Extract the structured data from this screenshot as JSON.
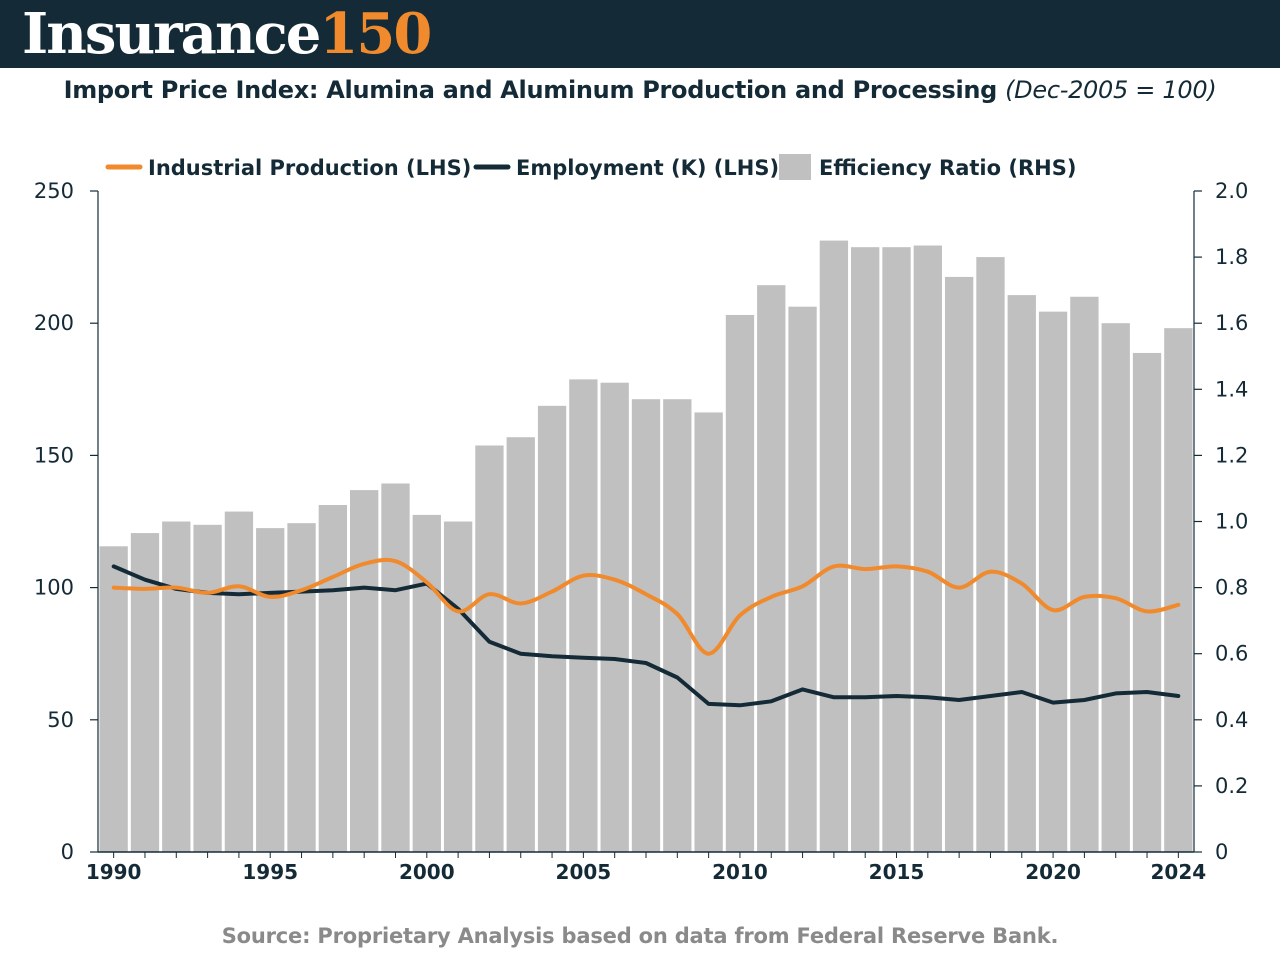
{
  "header": {
    "brand_main": "Insurance",
    "brand_number": "150"
  },
  "title": "Import Price Index: Alumina and Aluminum Production and Processing",
  "subtitle": "(Dec-2005 = 100)",
  "source": "Source: Proprietary Analysis based on data from Federal Reserve Bank.",
  "colors": {
    "header_bg": "#142b37",
    "brand_accent": "#f08a2c",
    "industrial": "#f08a2c",
    "employment": "#142b37",
    "bars": "#c0c0c0"
  },
  "chart_data": {
    "type": "bar+line",
    "x": [
      1990,
      1991,
      1992,
      1993,
      1994,
      1995,
      1996,
      1997,
      1998,
      1999,
      2000,
      2001,
      2002,
      2003,
      2004,
      2005,
      2006,
      2007,
      2008,
      2009,
      2010,
      2011,
      2012,
      2013,
      2014,
      2015,
      2016,
      2017,
      2018,
      2019,
      2020,
      2021,
      2022,
      2023,
      2024
    ],
    "x_ticks": [
      "1990",
      "1995",
      "2000",
      "2005",
      "2010",
      "2015",
      "2020",
      "2024"
    ],
    "y_left": {
      "min": 0,
      "max": 250,
      "ticks": [
        "0",
        "50",
        "100",
        "150",
        "200",
        "250"
      ]
    },
    "y_right": {
      "min": 0,
      "max": 2.0,
      "ticks": [
        "0",
        "0.2",
        "0.4",
        "0.6",
        "0.8",
        "1.0",
        "1.2",
        "1.4",
        "1.6",
        "1.8",
        "2.0"
      ]
    },
    "legend_position": "top",
    "grid": false,
    "series": [
      {
        "name": "Industrial Production (LHS)",
        "type": "line",
        "axis": "left",
        "values": [
          100,
          99.5,
          100,
          98,
          100.5,
          96.5,
          99,
          104,
          109,
          110,
          102,
          91,
          97.5,
          94,
          98.5,
          104.5,
          103,
          97.5,
          90,
          75,
          89.5,
          96.5,
          100.5,
          108,
          107,
          108,
          106,
          100,
          106,
          101.5,
          91.5,
          96.5,
          96,
          91,
          93.5
        ]
      },
      {
        "name": "Employment (K) (LHS)",
        "type": "line",
        "axis": "left",
        "values": [
          108,
          103,
          99.5,
          98,
          97.5,
          98,
          98.5,
          99,
          100,
          99,
          101.5,
          92,
          79.5,
          75,
          74,
          73.5,
          73,
          71.5,
          66,
          56,
          55.5,
          57,
          61.5,
          58.5,
          58.5,
          59,
          58.5,
          57.5,
          59,
          60.5,
          56.5,
          57.5,
          60,
          60.5,
          59
        ]
      },
      {
        "name": "Efficiency Ratio (RHS)",
        "type": "bar",
        "axis": "right",
        "values": [
          0.925,
          0.965,
          1.0,
          0.99,
          1.03,
          0.98,
          0.995,
          1.05,
          1.095,
          1.115,
          1.02,
          1.0,
          1.23,
          1.255,
          1.35,
          1.43,
          1.42,
          1.37,
          1.37,
          1.33,
          1.625,
          1.715,
          1.65,
          1.85,
          1.83,
          1.83,
          1.835,
          1.74,
          1.8,
          1.685,
          1.635,
          1.68,
          1.6,
          1.51,
          1.585
        ]
      }
    ]
  }
}
